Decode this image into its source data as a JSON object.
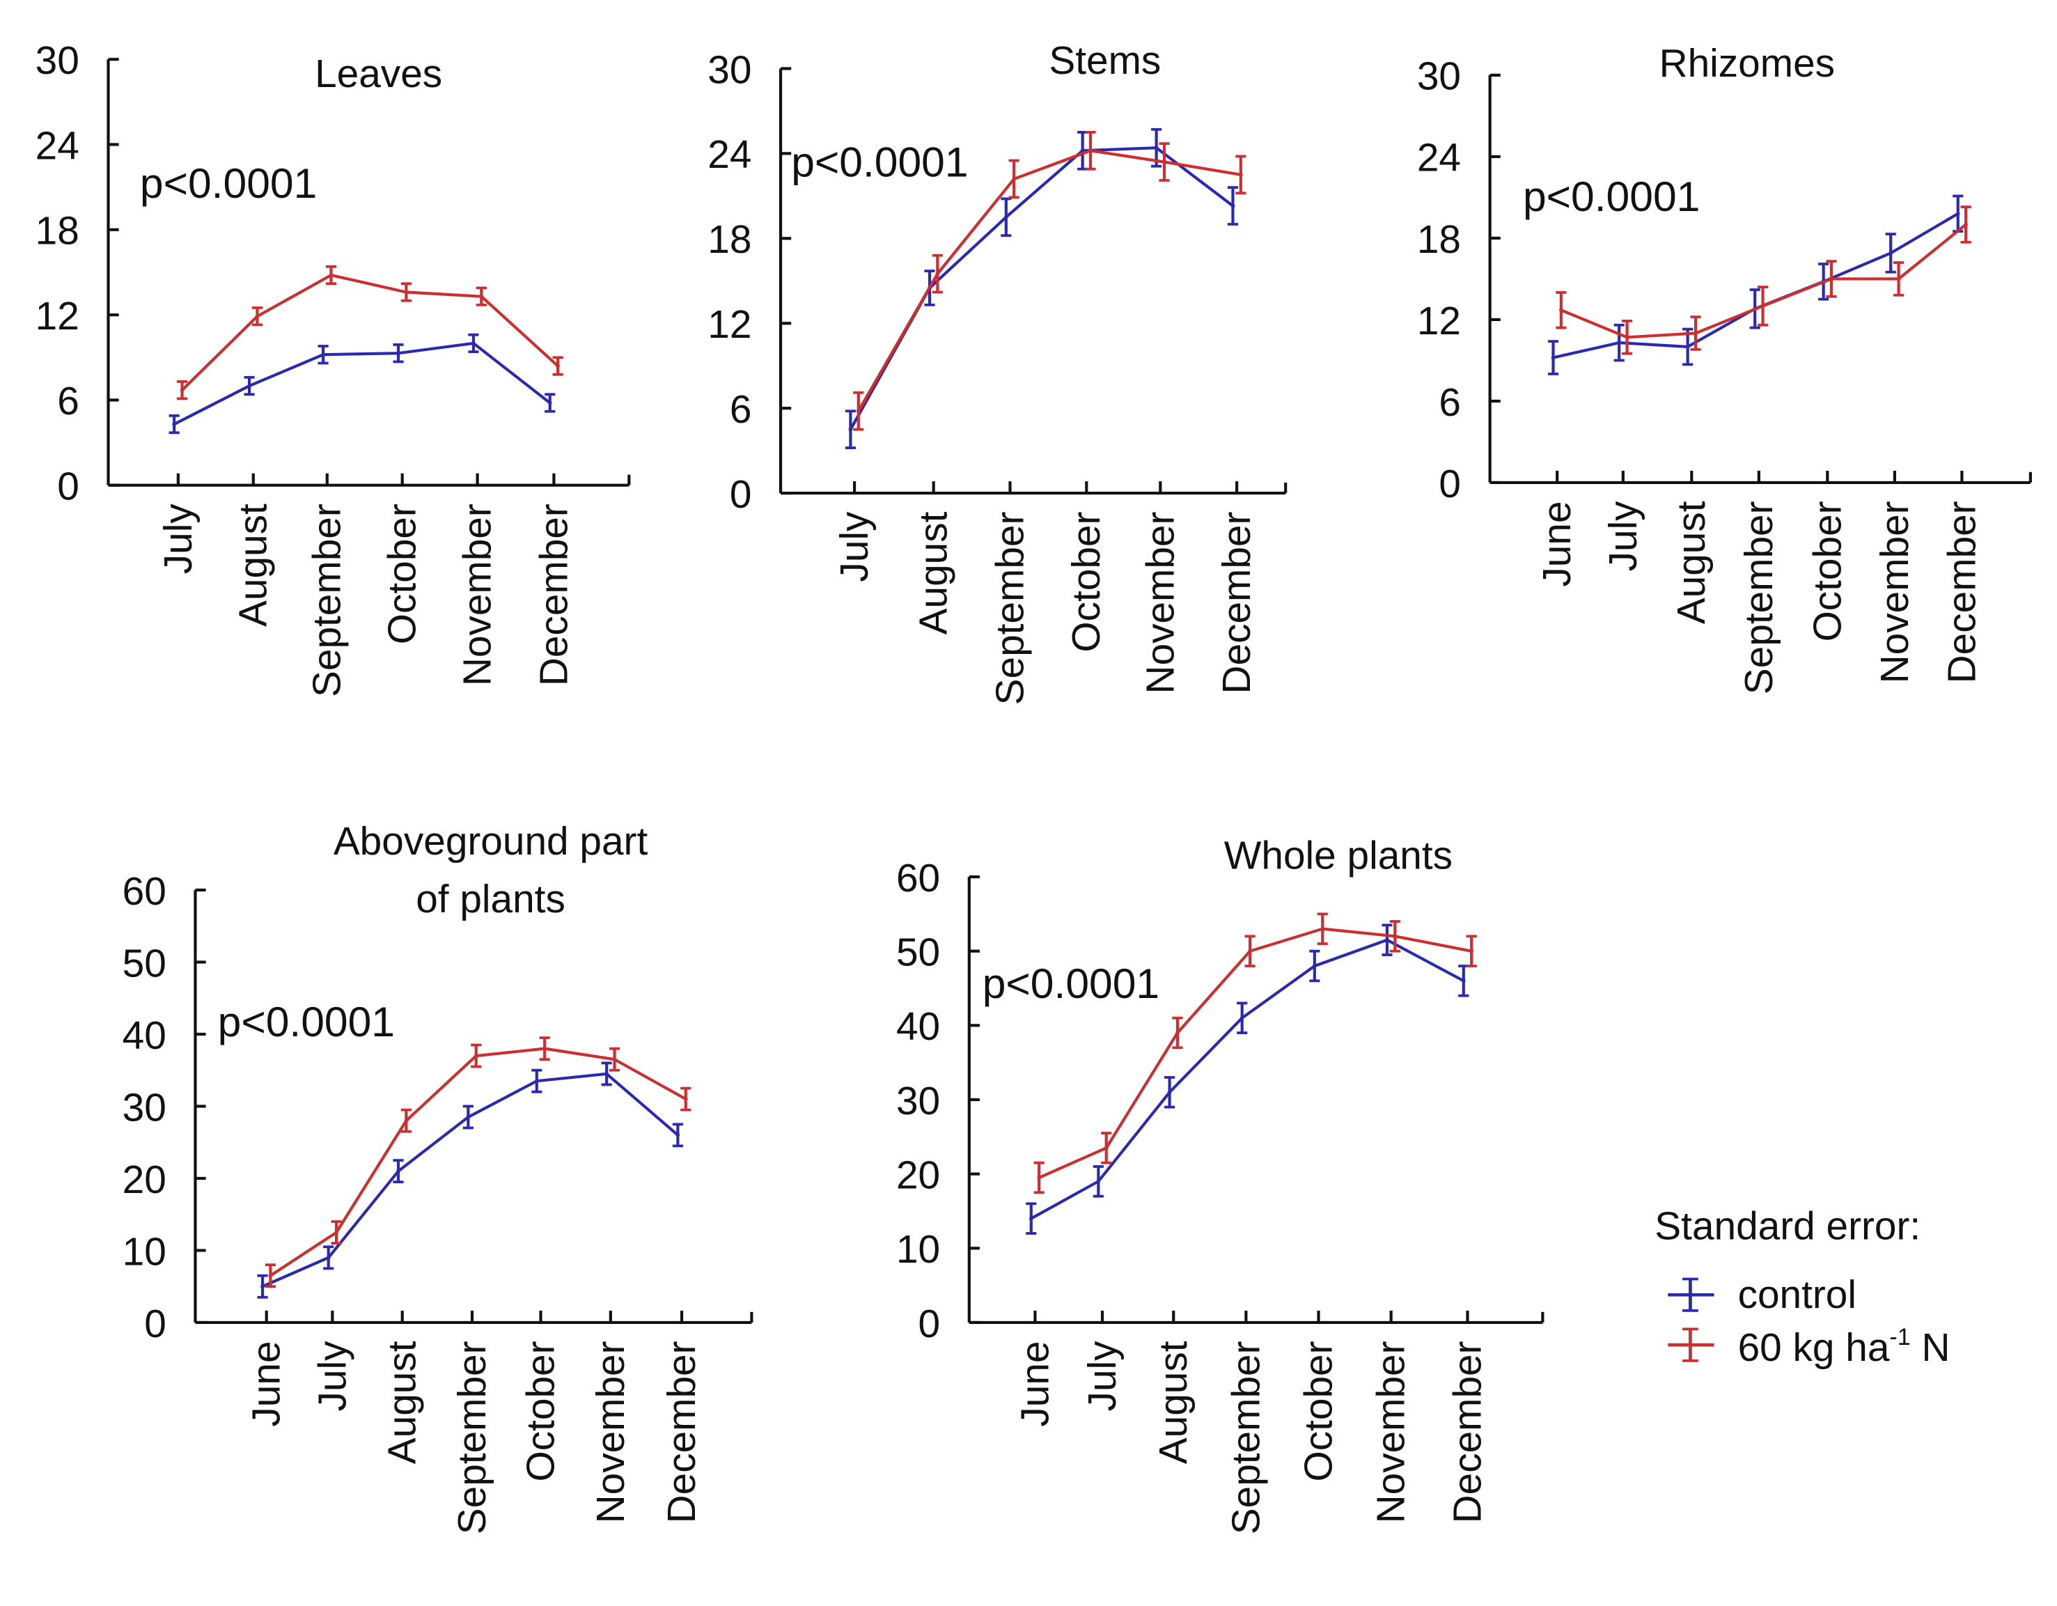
{
  "colors": {
    "control": "#2a2ab0",
    "treatment": "#cc2f2f"
  },
  "legend": {
    "title": "Standard error:",
    "control": "control",
    "treatment_pre": "60 kg ha",
    "treatment_sup": "-1",
    "treatment_post": " N"
  },
  "chart_data": [
    {
      "type": "line",
      "title": "Leaves",
      "annotation": "p<0.0001",
      "ylim": [
        0,
        30
      ],
      "yticks": [
        0,
        6,
        12,
        18,
        24,
        30
      ],
      "categories": [
        "July",
        "August",
        "September",
        "October",
        "November",
        "December"
      ],
      "series": [
        {
          "name": "control",
          "values": [
            4.3,
            7.0,
            9.2,
            9.3,
            10.0,
            5.8
          ],
          "errors": [
            0.6,
            0.6,
            0.6,
            0.6,
            0.6,
            0.6
          ]
        },
        {
          "name": "60 kg ha-1 N",
          "values": [
            6.7,
            11.9,
            14.8,
            13.6,
            13.3,
            8.4
          ],
          "errors": [
            0.6,
            0.6,
            0.6,
            0.6,
            0.6,
            0.6
          ]
        }
      ]
    },
    {
      "type": "line",
      "title": "Stems",
      "annotation": "p<0.0001",
      "ylim": [
        0,
        30
      ],
      "yticks": [
        0,
        6,
        12,
        18,
        24,
        30
      ],
      "categories": [
        "July",
        "August",
        "September",
        "October",
        "November",
        "December"
      ],
      "series": [
        {
          "name": "control",
          "values": [
            4.5,
            14.5,
            19.5,
            24.2,
            24.4,
            20.3
          ],
          "errors": [
            1.3,
            1.2,
            1.3,
            1.3,
            1.3,
            1.3
          ]
        },
        {
          "name": "60 kg ha-1 N",
          "values": [
            5.8,
            15.5,
            22.2,
            24.2,
            23.4,
            22.5
          ],
          "errors": [
            1.3,
            1.3,
            1.3,
            1.3,
            1.3,
            1.3
          ]
        }
      ]
    },
    {
      "type": "line",
      "title": "Rhizomes",
      "annotation": "p<0.0001",
      "ylim": [
        0,
        30
      ],
      "yticks": [
        0,
        6,
        12,
        18,
        24,
        30
      ],
      "categories": [
        "June",
        "July",
        "August",
        "September",
        "October",
        "November",
        "December"
      ],
      "series": [
        {
          "name": "control",
          "values": [
            9.2,
            10.3,
            10.0,
            12.8,
            14.8,
            16.9,
            19.8
          ],
          "errors": [
            1.2,
            1.3,
            1.3,
            1.4,
            1.3,
            1.4,
            1.3
          ]
        },
        {
          "name": "60 kg ha-1 N",
          "values": [
            12.7,
            10.7,
            11.0,
            13.0,
            15.0,
            15.0,
            19.0
          ],
          "errors": [
            1.3,
            1.2,
            1.2,
            1.4,
            1.3,
            1.2,
            1.3
          ]
        }
      ]
    },
    {
      "type": "line",
      "title": "Aboveground part of plants",
      "title_lines": [
        "Aboveground part",
        "of plants"
      ],
      "annotation": "p<0.0001",
      "ylim": [
        0,
        60
      ],
      "yticks": [
        0,
        10,
        20,
        30,
        40,
        50,
        60
      ],
      "categories": [
        "June",
        "July",
        "August",
        "September",
        "October",
        "November",
        "December"
      ],
      "series": [
        {
          "name": "control",
          "values": [
            5,
            9,
            21,
            28.5,
            33.5,
            34.5,
            26
          ],
          "errors": [
            1.5,
            1.5,
            1.5,
            1.5,
            1.5,
            1.5,
            1.5
          ]
        },
        {
          "name": "60 kg ha-1 N",
          "values": [
            6.5,
            12.5,
            28,
            37,
            38,
            36.5,
            31
          ],
          "errors": [
            1.5,
            1.5,
            1.5,
            1.5,
            1.5,
            1.5,
            1.5
          ]
        }
      ]
    },
    {
      "type": "line",
      "title": "Whole plants",
      "annotation": "p<0.0001",
      "ylim": [
        0,
        60
      ],
      "yticks": [
        0,
        10,
        20,
        30,
        40,
        50,
        60
      ],
      "categories": [
        "June",
        "July",
        "August",
        "September",
        "October",
        "November",
        "December"
      ],
      "series": [
        {
          "name": "control",
          "values": [
            14,
            19,
            31,
            41,
            48,
            51.5,
            46
          ],
          "errors": [
            2,
            2,
            2,
            2,
            2,
            2,
            2
          ]
        },
        {
          "name": "60 kg ha-1 N",
          "values": [
            19.5,
            23.5,
            39,
            50,
            53,
            52,
            50
          ],
          "errors": [
            2,
            2,
            2,
            2,
            2,
            2,
            2
          ]
        }
      ]
    }
  ]
}
